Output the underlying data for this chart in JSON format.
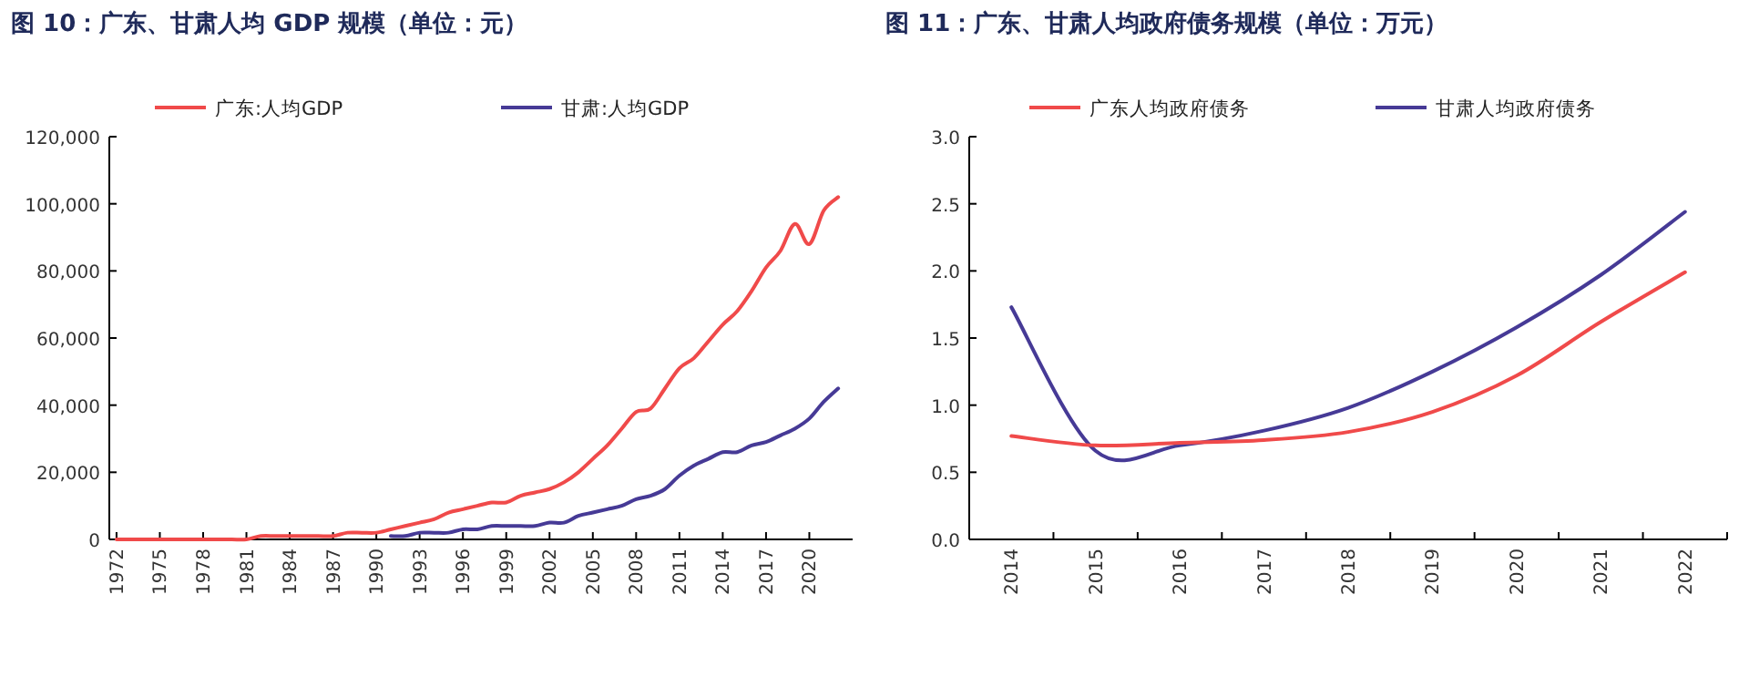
{
  "chart_data": [
    {
      "type": "line",
      "title": "图 10：广东、甘肃人均 GDP 规模（单位：元）",
      "legend": "top",
      "x": [
        1972,
        1973,
        1974,
        1975,
        1976,
        1977,
        1978,
        1979,
        1980,
        1981,
        1982,
        1983,
        1984,
        1985,
        1986,
        1987,
        1988,
        1989,
        1990,
        1991,
        1992,
        1993,
        1994,
        1995,
        1996,
        1997,
        1998,
        1999,
        2000,
        2001,
        2002,
        2003,
        2004,
        2005,
        2006,
        2007,
        2008,
        2009,
        2010,
        2011,
        2012,
        2013,
        2014,
        2015,
        2016,
        2017,
        2018,
        2019,
        2020,
        2021,
        2022
      ],
      "series": [
        {
          "name": "广东:人均GDP",
          "color": "#f04a4a",
          "values": [
            0,
            0,
            0,
            0,
            0,
            0,
            0,
            0,
            0,
            0,
            1000,
            1000,
            1000,
            1000,
            1000,
            1000,
            2000,
            2000,
            2000,
            3000,
            4000,
            5000,
            6000,
            8000,
            9000,
            10000,
            11000,
            11000,
            13000,
            14000,
            15000,
            17000,
            20000,
            24000,
            28000,
            33000,
            38000,
            39000,
            45000,
            51000,
            54000,
            59000,
            64000,
            68000,
            74000,
            81000,
            86000,
            94000,
            88000,
            98000,
            102000
          ]
        },
        {
          "name": "甘肃:人均GDP",
          "color": "#463a96",
          "values": [
            null,
            null,
            null,
            null,
            null,
            null,
            null,
            null,
            null,
            null,
            null,
            null,
            null,
            null,
            null,
            null,
            null,
            null,
            null,
            1000,
            1000,
            2000,
            2000,
            2000,
            3000,
            3000,
            4000,
            4000,
            4000,
            4000,
            5000,
            5000,
            7000,
            8000,
            9000,
            10000,
            12000,
            13000,
            15000,
            19000,
            22000,
            24000,
            26000,
            26000,
            28000,
            29000,
            31000,
            33000,
            36000,
            41000,
            45000
          ]
        }
      ],
      "xlim": [
        1971.5,
        2023
      ],
      "xticks": [
        1972,
        1975,
        1978,
        1981,
        1984,
        1987,
        1990,
        1993,
        1996,
        1999,
        2002,
        2005,
        2008,
        2011,
        2014,
        2017,
        2020
      ],
      "ylim": [
        0,
        120000
      ],
      "yticks": [
        0,
        {
          "value": 20000,
          "label": "20,000"
        },
        {
          "value": 40000,
          "label": "40,000"
        },
        {
          "value": 60000,
          "label": "60,000"
        },
        {
          "value": 80000,
          "label": "80,000"
        },
        {
          "value": 100000,
          "label": "100,000"
        },
        {
          "value": 120000,
          "label": "120,000"
        }
      ]
    },
    {
      "type": "line",
      "title": "图 11：广东、甘肃人均政府债务规模（单位：万元）",
      "legend": "top",
      "categories": [
        "2014",
        "2015",
        "2016",
        "2017",
        "2018",
        "2019",
        "2020",
        "2021",
        "2022"
      ],
      "series": [
        {
          "name": "广东人均政府债务",
          "color": "#f04a4a",
          "values": [
            0.77,
            0.7,
            0.72,
            0.74,
            0.8,
            0.95,
            1.22,
            1.62,
            1.99
          ]
        },
        {
          "name": "甘肃人均政府债务",
          "color": "#463a96",
          "values": [
            1.73,
            0.66,
            0.7,
            0.81,
            0.98,
            1.25,
            1.58,
            1.97,
            2.44
          ]
        }
      ],
      "ylim": [
        0,
        3
      ],
      "yticks": [
        {
          "value": 0,
          "label": "0.0"
        },
        {
          "value": 0.5,
          "label": "0.5"
        },
        {
          "value": 1,
          "label": "1.0"
        },
        {
          "value": 1.5,
          "label": "1.5"
        },
        {
          "value": 2,
          "label": "2.0"
        },
        {
          "value": 2.5,
          "label": "2.5"
        },
        {
          "value": 3,
          "label": "3.0"
        }
      ]
    }
  ]
}
